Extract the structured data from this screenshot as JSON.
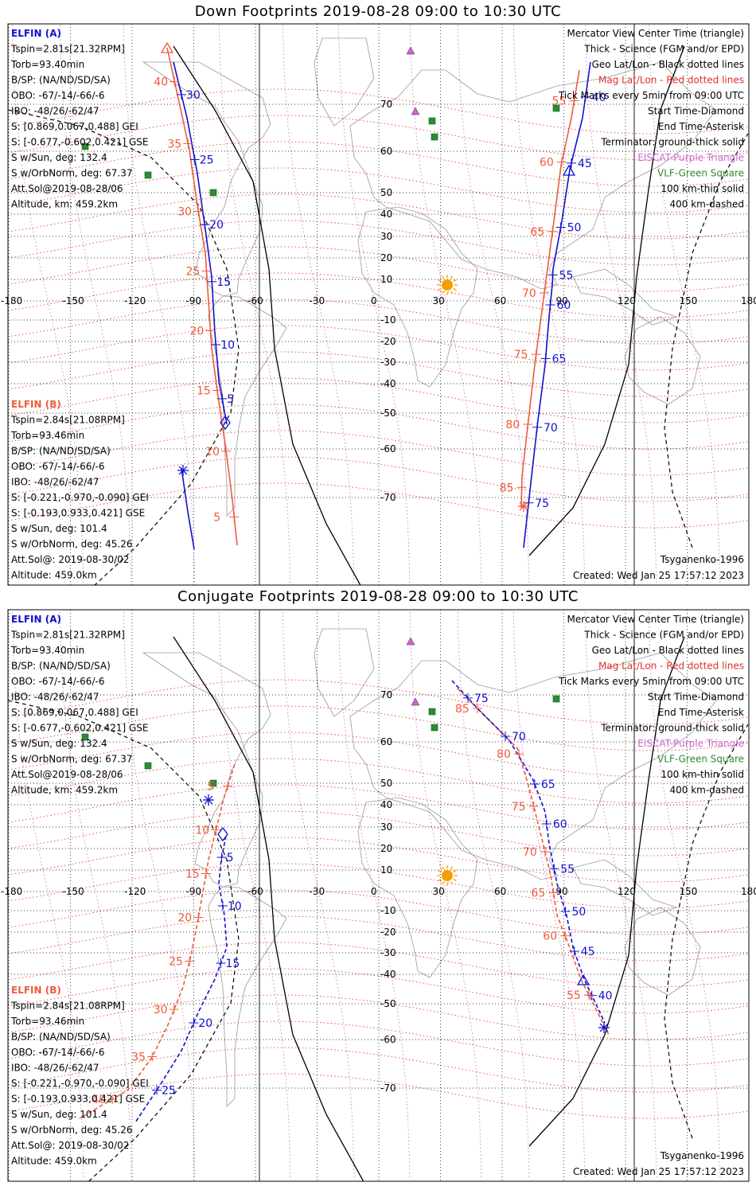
{
  "colors": {
    "elfin_a": "#1010d0",
    "elfin_b": "#f05a3c",
    "eiscat": "#cc66cc",
    "vlf": "#2e8b2e",
    "mag_grid": "#e03030",
    "geo_grid": "#000000",
    "sun": "#f5a000",
    "land": "#9a9a9a"
  },
  "panels": [
    {
      "title": "Down Footprints 2019-08-28 09:00 to 10:30 UTC",
      "elfin_a": {
        "label": "ELFIN (A)",
        "lines": [
          "Tspin=2.81s[21.32RPM]",
          "Torb=93.40min",
          "B/SP: (NA/ND/SD/SA)",
          "OBO: -67/-14/-66/-6",
          "IBO: -48/26/-62/47",
          "S: [0.869,0.067,0.488] GEI",
          "S: [-0.677,-0.602,0.421] GSE",
          "S w/Sun, deg: 132.4",
          "S w/OrbNorm, deg: 67.37",
          "Att.Sol@2019-08-28/06",
          "Altitude, km: 459.2km"
        ]
      },
      "elfin_b": {
        "label": "ELFIN (B)",
        "lines": [
          "Tspin=2.84s[21.08RPM]",
          "Torb=93.46min",
          "B/SP: (NA/ND/SD/SA)",
          "OBO: -67/-14/-66/-6",
          "IBO: -48/26/-62/47",
          "S: [-0.221,-0.970,-0.090] GEI",
          "S: [-0.193,0.933,0.421] GSE",
          "S w/Sun, deg: 101.4",
          "S w/OrbNorm, deg: 45.26",
          "Att.Sol@: 2019-08-30/02",
          "Altitude: 459.0km"
        ]
      },
      "legend": [
        {
          "text": "Mercator View Center Time (triangle)",
          "color": "#000000"
        },
        {
          "text": "Thick - Science (FGM and/or EPD)",
          "color": "#000000"
        },
        {
          "text": "Geo Lat/Lon - Black dotted lines",
          "color": "#000000"
        },
        {
          "text": "Mag Lat/Lon - Red dotted lines",
          "color": "#e03030"
        },
        {
          "text": "Tick Marks every 5min from 09:00 UTC",
          "color": "#000000"
        },
        {
          "text": "Start Time-Diamond",
          "color": "#000000"
        },
        {
          "text": "End Time-Asterisk",
          "color": "#000000"
        },
        {
          "text": "Terminator: ground-thick solid",
          "color": "#000000"
        },
        {
          "text": "EISCAT-Purple Triangle",
          "color": "#cc66cc"
        },
        {
          "text": "VLF-Green Square",
          "color": "#2e8b2e"
        },
        {
          "text": "100 km-thin solid",
          "color": "#000000"
        },
        {
          "text": "400 km-dashed",
          "color": "#000000"
        }
      ],
      "model": "Tsyganenko-1996",
      "created": "Created: Wed Jan 25 17:57:12 2023",
      "lon_labels": [
        "-180",
        "-150",
        "-120",
        "-90",
        "-60",
        "-30",
        "0",
        "30",
        "60",
        "90",
        "120",
        "150",
        "180"
      ],
      "lat_labels": [
        "70",
        "60",
        "50",
        "40",
        "30",
        "20",
        "10",
        "0",
        "-10",
        "-20",
        "-30",
        "-40",
        "-50",
        "-60",
        "-70"
      ],
      "tracks": {
        "a_west_ticks": [
          "30",
          "25",
          "20",
          "15",
          "10",
          "5"
        ],
        "b_west_ticks": [
          "40",
          "35",
          "30",
          "25",
          "20",
          "15",
          "10",
          "5"
        ],
        "a_east_ticks": [
          "40",
          "45",
          "50",
          "55",
          "60",
          "65",
          "70",
          "75"
        ],
        "b_east_ticks": [
          "55",
          "60",
          "65",
          "70",
          "75",
          "80",
          "85"
        ]
      }
    },
    {
      "title": "Conjugate Footprints 2019-08-28 09:00 to 10:30 UTC",
      "elfin_a": {
        "label": "ELFIN (A)",
        "lines": [
          "Tspin=2.81s[21.32RPM]",
          "Torb=93.40min",
          "B/SP: (NA/ND/SD/SA)",
          "OBO: -67/-14/-66/-6",
          "IBO: -48/26/-62/47",
          "S: [0.869,0.067,0.488] GEI",
          "S: [-0.677,-0.602,0.421] GSE",
          "S w/Sun, deg: 132.4",
          "S w/OrbNorm, deg: 67.37",
          "Att.Sol@2019-08-28/06",
          "Altitude, km: 459.2km"
        ]
      },
      "elfin_b": {
        "label": "ELFIN (B)",
        "lines": [
          "Tspin=2.84s[21.08RPM]",
          "Torb=93.46min",
          "B/SP: (NA/ND/SD/SA)",
          "OBO: -67/-14/-66/-6",
          "IBO: -48/26/-62/47",
          "S: [-0.221,-0.970,-0.090] GEI",
          "S: [-0.193,0.933,0.421] GSE",
          "S w/Sun, deg: 101.4",
          "S w/OrbNorm, deg: 45.26",
          "Att.Sol@: 2019-08-30/02",
          "Altitude: 459.0km"
        ]
      },
      "legend": [
        {
          "text": "Mercator View Center Time (triangle)",
          "color": "#000000"
        },
        {
          "text": "Thick - Science (FGM and/or EPD)",
          "color": "#000000"
        },
        {
          "text": "Geo Lat/Lon - Black dotted lines",
          "color": "#000000"
        },
        {
          "text": "Mag Lat/Lon - Red dotted lines",
          "color": "#e03030"
        },
        {
          "text": "Tick Marks every 5min from 09:00 UTC",
          "color": "#000000"
        },
        {
          "text": "Start Time-Diamond",
          "color": "#000000"
        },
        {
          "text": "End Time-Asterisk",
          "color": "#000000"
        },
        {
          "text": "Terminator: ground-thick solid",
          "color": "#000000"
        },
        {
          "text": "EISCAT-Purple Triangle",
          "color": "#cc66cc"
        },
        {
          "text": "VLF-Green Square",
          "color": "#2e8b2e"
        },
        {
          "text": "100 km-thin solid",
          "color": "#000000"
        },
        {
          "text": "400 km-dashed",
          "color": "#000000"
        }
      ],
      "model": "Tsyganenko-1996",
      "created": "Created: Wed Jan 25 17:57:12 2023",
      "lon_labels": [
        "-180",
        "-150",
        "-120",
        "-90",
        "-60",
        "-30",
        "0",
        "30",
        "60",
        "90",
        "120",
        "150",
        "180"
      ],
      "lat_labels": [
        "70",
        "60",
        "50",
        "40",
        "30",
        "20",
        "10",
        "0",
        "-10",
        "-20",
        "-30",
        "-40",
        "-50",
        "-60",
        "-70"
      ],
      "tracks": {
        "a_west_ticks": [
          "5",
          "10",
          "15",
          "20",
          "25"
        ],
        "b_west_ticks": [
          "5",
          "10",
          "15",
          "20",
          "25",
          "30",
          "35",
          "40"
        ],
        "a_east_ticks": [
          "75",
          "70",
          "65",
          "60",
          "55",
          "50",
          "45",
          "40"
        ],
        "b_east_ticks": [
          "85",
          "80",
          "75",
          "70",
          "65",
          "60",
          "55"
        ]
      }
    }
  ]
}
